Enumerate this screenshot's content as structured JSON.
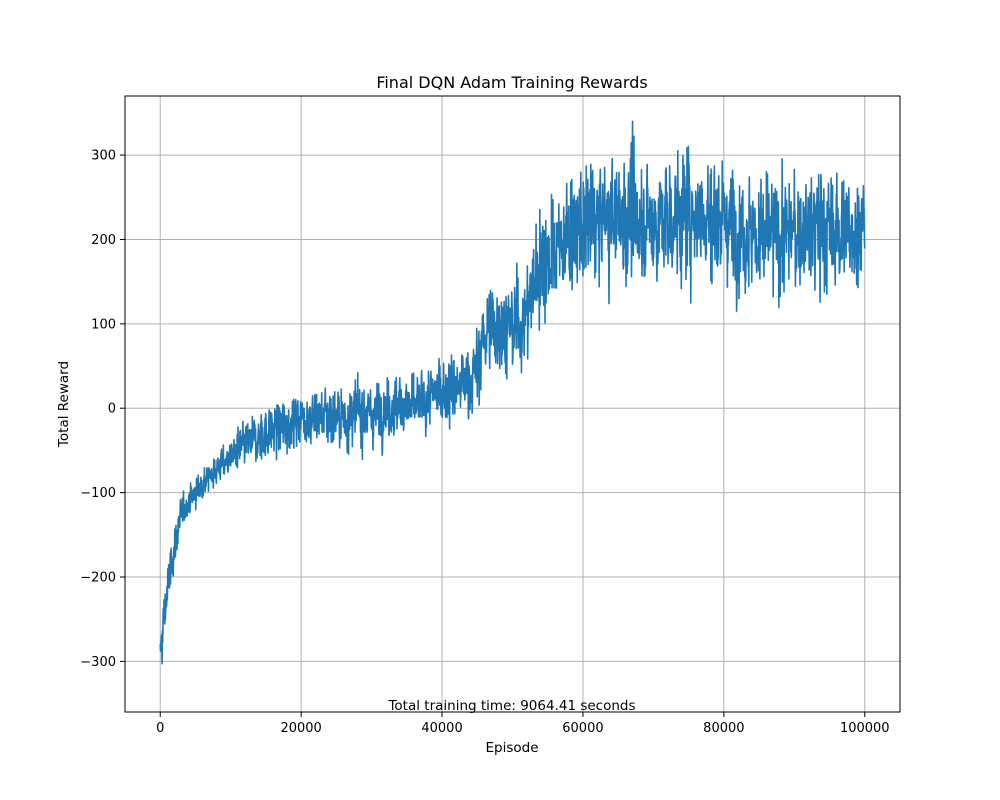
{
  "chart_data": {
    "type": "line",
    "title": "Final DQN Adam Training Rewards",
    "xlabel": "Episode",
    "ylabel": "Total Reward",
    "annotation": "Total training time: 9064.41 seconds",
    "xlim": [
      -5000,
      105000
    ],
    "ylim": [
      -360,
      370
    ],
    "xticks": [
      0,
      20000,
      40000,
      60000,
      80000,
      100000
    ],
    "xtick_labels": [
      "0",
      "20000",
      "40000",
      "60000",
      "80000",
      "100000"
    ],
    "yticks": [
      -300,
      -200,
      -100,
      0,
      100,
      200,
      300
    ],
    "ytick_labels": [
      "−300",
      "−200",
      "−100",
      "0",
      "100",
      "200",
      "300"
    ],
    "grid": true,
    "line_color": "#1f77b4",
    "series": [
      {
        "x": [
          0,
          300,
          600,
          1000,
          1500,
          2000,
          2500,
          3000,
          4000,
          5000,
          6000,
          7000,
          8000,
          9000,
          10000,
          12000,
          14000,
          16000,
          18000,
          20000,
          22000,
          24000,
          26000,
          28000,
          30000,
          32000,
          34000,
          36000,
          38000,
          40000,
          42000,
          44000,
          45000,
          46000,
          48000,
          50000,
          52000,
          53000,
          54000,
          56000,
          58000,
          60000,
          62000,
          64000,
          66000,
          68000,
          70000,
          72000,
          74000,
          76000,
          78000,
          80000,
          82000,
          84000,
          86000,
          88000,
          90000,
          92000,
          94000,
          96000,
          98000,
          100000
        ],
        "values": [
          -300,
          -270,
          -245,
          -220,
          -190,
          -165,
          -145,
          -125,
          -110,
          -100,
          -90,
          -80,
          -72,
          -65,
          -58,
          -45,
          -35,
          -25,
          -18,
          -10,
          -12,
          -8,
          -10,
          -5,
          -8,
          0,
          5,
          0,
          10,
          20,
          25,
          35,
          45,
          90,
          100,
          95,
          110,
          150,
          175,
          185,
          205,
          215,
          220,
          225,
          230,
          225,
          220,
          225,
          230,
          235,
          230,
          225,
          215,
          210,
          200,
          205,
          210,
          215,
          210,
          205,
          215,
          220
        ],
        "noise_amplitude": [
          30,
          30,
          28,
          25,
          20,
          18,
          15,
          14,
          12,
          12,
          12,
          13,
          14,
          15,
          16,
          20,
          22,
          24,
          25,
          25,
          26,
          26,
          26,
          26,
          26,
          26,
          26,
          26,
          27,
          28,
          30,
          34,
          38,
          40,
          40,
          40,
          42,
          45,
          48,
          50,
          52,
          54,
          55,
          55,
          55,
          55,
          55,
          55,
          55,
          55,
          55,
          55,
          55,
          55,
          55,
          52,
          50,
          50,
          50,
          50,
          50,
          50
        ]
      }
    ]
  }
}
